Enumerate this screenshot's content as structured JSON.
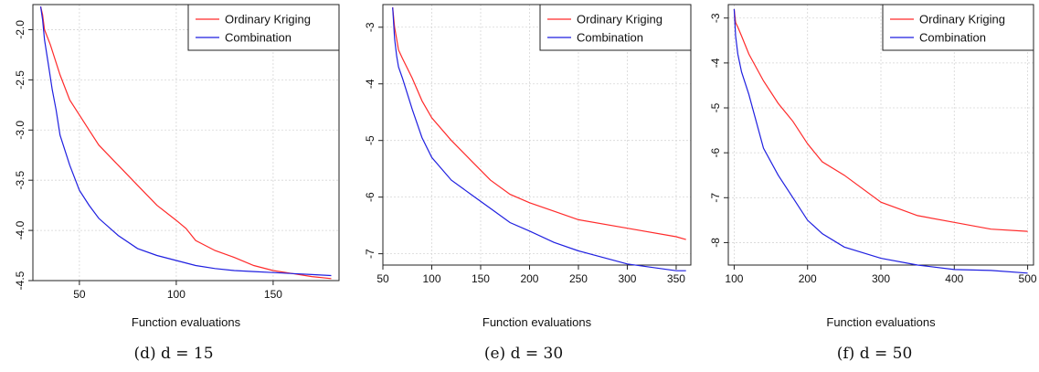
{
  "colors": {
    "red": "#ff2a2a",
    "blue": "#1f1fe0",
    "grid": "#d6d6d6",
    "axis": "#222222"
  },
  "chart_data": [
    {
      "type": "line",
      "caption": "(d) d = 15",
      "xlabel": "Function evaluations",
      "ylabel": "",
      "xlim": [
        26,
        184
      ],
      "ylim": [
        -4.5,
        -1.75
      ],
      "xticks": [
        50,
        100,
        150
      ],
      "yticks": [
        -2.0,
        -2.5,
        -3.0,
        -3.5,
        -4.0,
        -4.5
      ],
      "xtick_labels": [
        "50",
        "100",
        "150"
      ],
      "ytick_labels": [
        "-2.0",
        "-2.5",
        "-3.0",
        "-3.5",
        "-4.0",
        "-4.5"
      ],
      "grid": true,
      "legend_position": "top-right",
      "series": [
        {
          "name": "Ordinary Kriging",
          "color": "red",
          "x": [
            30,
            31,
            32,
            35,
            40,
            45,
            50,
            55,
            60,
            70,
            80,
            90,
            100,
            105,
            110,
            115,
            120,
            130,
            140,
            150,
            160,
            170,
            180
          ],
          "y": [
            -1.77,
            -1.85,
            -2.0,
            -2.15,
            -2.45,
            -2.7,
            -2.85,
            -3.0,
            -3.15,
            -3.35,
            -3.55,
            -3.75,
            -3.9,
            -3.98,
            -4.1,
            -4.15,
            -4.2,
            -4.27,
            -4.35,
            -4.4,
            -4.43,
            -4.46,
            -4.48
          ]
        },
        {
          "name": "Combination",
          "color": "blue",
          "x": [
            30,
            31,
            32,
            34,
            36,
            38,
            40,
            45,
            50,
            55,
            60,
            70,
            80,
            90,
            100,
            110,
            120,
            130,
            140,
            150,
            160,
            170,
            180
          ],
          "y": [
            -1.77,
            -1.9,
            -2.1,
            -2.35,
            -2.6,
            -2.8,
            -3.05,
            -3.35,
            -3.6,
            -3.75,
            -3.88,
            -4.05,
            -4.18,
            -4.25,
            -4.3,
            -4.35,
            -4.38,
            -4.4,
            -4.41,
            -4.42,
            -4.43,
            -4.44,
            -4.45
          ]
        }
      ]
    },
    {
      "type": "line",
      "caption": "(e) d = 30",
      "xlabel": "Function evaluations",
      "ylabel": "",
      "xlim": [
        50,
        365
      ],
      "ylim": [
        -7.2,
        -2.6
      ],
      "xticks": [
        50,
        100,
        150,
        200,
        250,
        300,
        350
      ],
      "yticks": [
        -3,
        -4,
        -5,
        -6,
        -7
      ],
      "xtick_labels": [
        "50",
        "100",
        "150",
        "200",
        "250",
        "300",
        "350"
      ],
      "ytick_labels": [
        "-3",
        "-4",
        "-5",
        "-6",
        "-7"
      ],
      "grid": true,
      "legend_position": "top-right",
      "series": [
        {
          "name": "Ordinary Kriging",
          "color": "red",
          "x": [
            60,
            62,
            64,
            66,
            70,
            80,
            90,
            100,
            120,
            140,
            160,
            180,
            200,
            225,
            250,
            300,
            350,
            360
          ],
          "y": [
            -2.65,
            -3.0,
            -3.2,
            -3.4,
            -3.55,
            -3.9,
            -4.3,
            -4.6,
            -5.0,
            -5.35,
            -5.7,
            -5.95,
            -6.1,
            -6.25,
            -6.4,
            -6.55,
            -6.7,
            -6.75
          ]
        },
        {
          "name": "Combination",
          "color": "blue",
          "x": [
            60,
            62,
            64,
            66,
            70,
            80,
            90,
            100,
            120,
            140,
            160,
            180,
            200,
            225,
            250,
            300,
            350,
            360
          ],
          "y": [
            -2.65,
            -3.2,
            -3.5,
            -3.7,
            -3.9,
            -4.45,
            -4.95,
            -5.3,
            -5.7,
            -5.95,
            -6.2,
            -6.45,
            -6.6,
            -6.8,
            -6.95,
            -7.18,
            -7.3,
            -7.3
          ]
        }
      ]
    },
    {
      "type": "line",
      "caption": "(f) d = 50",
      "xlabel": "Function evaluations",
      "ylabel": "",
      "xlim": [
        92,
        508
      ],
      "ylim": [
        -8.5,
        -2.7
      ],
      "xticks": [
        100,
        200,
        300,
        400,
        500
      ],
      "yticks": [
        -3,
        -4,
        -5,
        -6,
        -7,
        -8
      ],
      "xtick_labels": [
        "100",
        "200",
        "300",
        "400",
        "500"
      ],
      "ytick_labels": [
        "-3",
        "-4",
        "-5",
        "-6",
        "-7",
        "-8"
      ],
      "grid": true,
      "legend_position": "top-right",
      "series": [
        {
          "name": "Ordinary Kriging",
          "color": "red",
          "x": [
            100,
            102,
            105,
            110,
            120,
            140,
            160,
            180,
            200,
            220,
            250,
            300,
            350,
            400,
            450,
            500
          ],
          "y": [
            -2.8,
            -3.1,
            -3.2,
            -3.4,
            -3.8,
            -4.4,
            -4.9,
            -5.3,
            -5.8,
            -6.2,
            -6.5,
            -7.1,
            -7.4,
            -7.55,
            -7.7,
            -7.75
          ]
        },
        {
          "name": "Combination",
          "color": "blue",
          "x": [
            100,
            102,
            105,
            110,
            120,
            140,
            160,
            180,
            200,
            220,
            250,
            300,
            350,
            400,
            450,
            500
          ],
          "y": [
            -2.8,
            -3.4,
            -3.8,
            -4.2,
            -4.7,
            -5.9,
            -6.5,
            -7.0,
            -7.5,
            -7.8,
            -8.1,
            -8.35,
            -8.5,
            -8.6,
            -8.62,
            -8.68
          ]
        }
      ]
    }
  ]
}
